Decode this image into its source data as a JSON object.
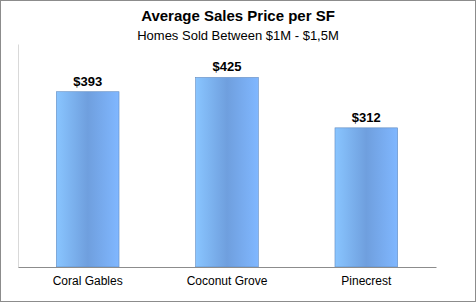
{
  "chart_data": {
    "type": "bar",
    "title": "Average Sales Price per SF",
    "subtitle": "Homes Sold Between $1M - $1,5M",
    "categories": [
      "Coral Gables",
      "Coconut Grove",
      "Pinecrest"
    ],
    "values": [
      393,
      425,
      312
    ],
    "value_labels": [
      "$393",
      "$425",
      "$312"
    ],
    "color": "#6f9fde",
    "ylim": [
      0,
      500
    ],
    "data_labels": true,
    "grid": false,
    "tick_labels": "x"
  }
}
